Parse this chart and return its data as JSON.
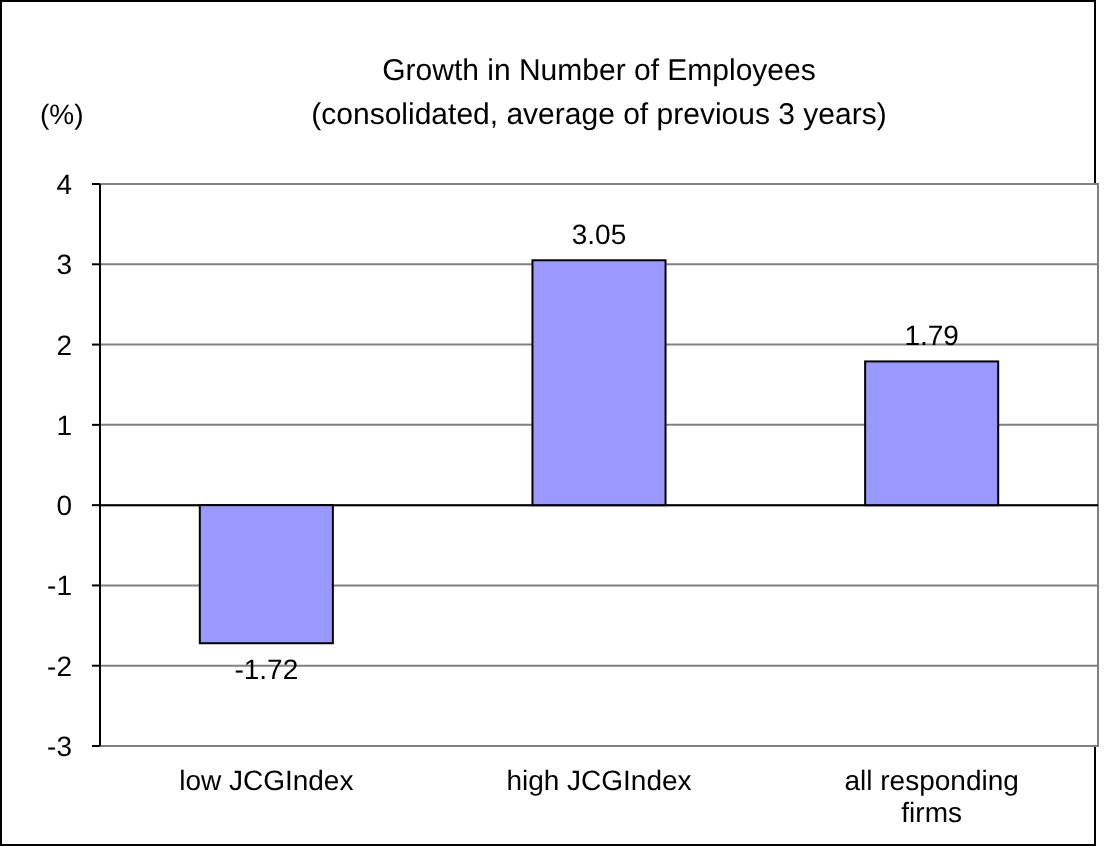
{
  "chart_data": {
    "type": "bar",
    "title": "Growth in Number of Employees",
    "subtitle": "(consolidated, average of previous 3 years)",
    "ylabel": "(%)",
    "categories": [
      "low JCGIndex",
      "high JCGIndex",
      "all responding firms"
    ],
    "values": [
      -1.72,
      3.05,
      1.79
    ],
    "color": "#9999ff",
    "ylim": [
      -3,
      4
    ],
    "yticks": [
      -3,
      -2,
      -1,
      0,
      1,
      2,
      3,
      4
    ],
    "grid": "y",
    "data_labels": true
  }
}
